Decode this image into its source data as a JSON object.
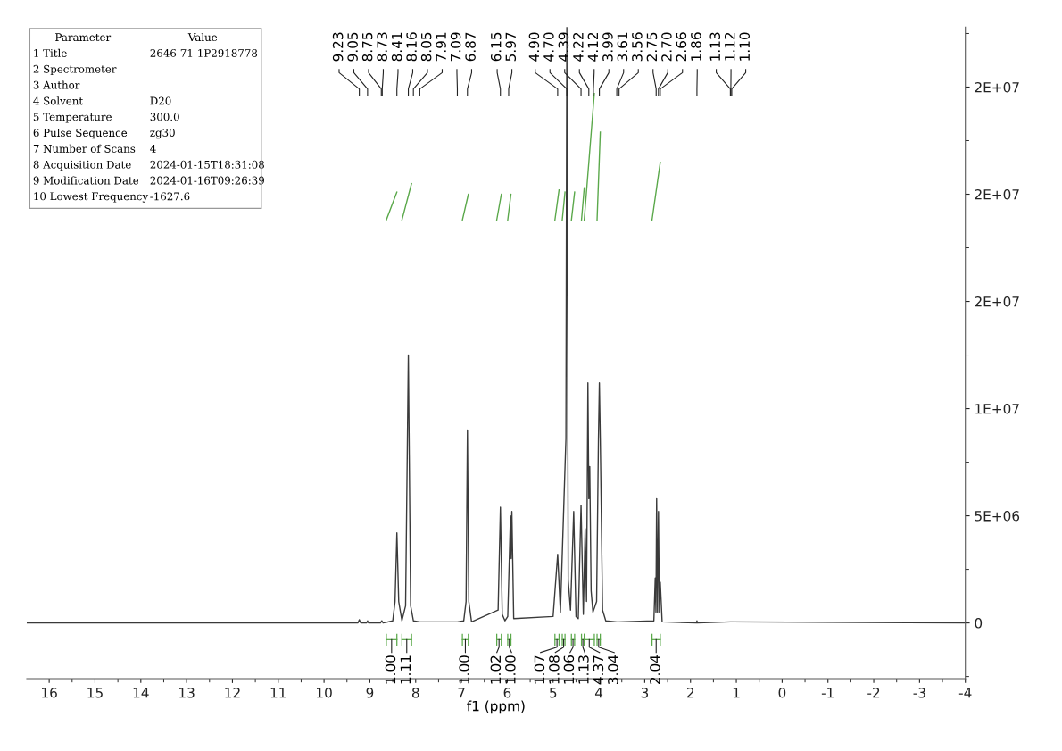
{
  "chart_data": {
    "type": "line",
    "xlabel": "f1 (ppm)",
    "xlim": [
      16.49,
      -4
    ],
    "xticks": [
      16,
      15,
      14,
      13,
      12,
      11,
      10,
      9,
      8,
      7,
      6,
      5,
      4,
      3,
      2,
      1,
      0,
      -1,
      -2,
      -3,
      -4
    ],
    "ylim": [
      -2600000,
      27800000
    ],
    "yticks": [
      0,
      {
        "value": 5000000,
        "label": "5E+06"
      },
      {
        "value": 10000000,
        "label": "1E+07"
      },
      {
        "value": 15000000,
        "label": "2E+07"
      },
      {
        "value": 20000000,
        "label": "2E+07"
      },
      {
        "value": 25000000,
        "label": "2E+07"
      }
    ],
    "grid": false,
    "legend": false,
    "marker": "none",
    "line_style": "solid",
    "series": [
      {
        "color": "#3a3a3a",
        "x": [
          16.49,
          9.26,
          9.23,
          9.2,
          9.07,
          9.05,
          9.03,
          8.77,
          8.74,
          8.71,
          8.5,
          8.45,
          8.41,
          8.37,
          8.3,
          8.22,
          8.16,
          8.11,
          8.05,
          7.91,
          7.09,
          6.95,
          6.9,
          6.87,
          6.84,
          6.78,
          6.2,
          6.15,
          6.11,
          6.05,
          5.99,
          5.93,
          5.915,
          5.9,
          5.86,
          5.0,
          4.9,
          4.84,
          4.76,
          4.72,
          4.7,
          4.67,
          4.62,
          4.55,
          4.5,
          4.45,
          4.39,
          4.34,
          4.3,
          4.27,
          4.24,
          4.22,
          4.2,
          4.17,
          4.13,
          4.05,
          4.01,
          3.99,
          3.97,
          3.92,
          3.85,
          3.61,
          3.56,
          2.8,
          2.77,
          2.755,
          2.74,
          2.72,
          2.7,
          2.68,
          2.66,
          2.62,
          1.87,
          1.86,
          1.85,
          1.13,
          1.12,
          1.1,
          -4
        ],
        "values": [
          0,
          0,
          150000,
          0,
          0,
          100000,
          0,
          0,
          100000,
          0,
          100000,
          1000000,
          4200000,
          1000000,
          100000,
          800000,
          12500000,
          800000,
          100000,
          50000,
          50000,
          100000,
          1000000,
          9000000,
          1000000,
          50000,
          600000,
          5400000,
          400000,
          100000,
          300000,
          5000000,
          3000000,
          5200000,
          200000,
          300000,
          3200000,
          500000,
          5900000,
          8600000,
          27800000,
          2000000,
          600000,
          5200000,
          300000,
          200000,
          5500000,
          400000,
          4400000,
          1000000,
          11200000,
          5800000,
          7300000,
          1500000,
          500000,
          1000000,
          8600000,
          11200000,
          8600000,
          600000,
          100000,
          50000,
          50000,
          100000,
          2100000,
          500000,
          5800000,
          500000,
          5200000,
          500000,
          1900000,
          50000,
          0,
          100000,
          0,
          50000,
          50000,
          50000,
          0
        ]
      },
      {
        "color": "#5aa84a",
        "x": [
          8.64,
          8.41,
          null,
          8.3,
          8.09,
          null,
          6.98,
          6.85,
          null,
          6.23,
          6.13,
          null,
          5.99,
          5.92,
          null,
          4.96,
          4.87,
          null,
          4.8,
          4.74,
          null,
          4.6,
          4.53,
          null,
          4.38,
          4.32,
          null,
          4.32,
          4.1,
          null,
          4.04,
          3.97,
          null,
          2.84,
          2.66
        ],
        "values": [
          18800000,
          20100000,
          null,
          18800000,
          20500000,
          null,
          18800000,
          20000000,
          null,
          18800000,
          20000000,
          null,
          18800000,
          20000000,
          null,
          18800000,
          20200000,
          null,
          18800000,
          20100000,
          null,
          18800000,
          20100000,
          null,
          18800000,
          20300000,
          null,
          18800000,
          24700000,
          null,
          18800000,
          22900000,
          null,
          18800000,
          21500000
        ]
      }
    ],
    "annotations": [
      "Parameter\tValue",
      "1 Title\t2646-71-1P2918778",
      "2 Spectrometer",
      "3 Author",
      "4 Solvent\tD20",
      "5 Temperature\t300.0",
      "6 Pulse Sequence\tzg30",
      "7 Number of Scans\t4",
      "8 Acquisition Date\t2024-01-15T18:31:08",
      "9 Modification Date\t2024-01-16T09:26:39",
      "10 Lowest Frequency\t-1627.6",
      {
        "text": "9.23",
        "x": 9.23
      },
      {
        "text": "9.05",
        "x": 9.05
      },
      {
        "text": "8.75",
        "x": 8.75
      },
      {
        "text": "8.73",
        "x": 8.73
      },
      {
        "text": "8.41",
        "x": 8.41
      },
      {
        "text": "8.16",
        "x": 8.16
      },
      {
        "text": "8.05",
        "x": 8.05
      },
      {
        "text": "7.91",
        "x": 7.91
      },
      {
        "text": "7.09",
        "x": 7.09
      },
      {
        "text": "6.87",
        "x": 6.87
      },
      {
        "text": "6.15",
        "x": 6.15
      },
      {
        "text": "5.97",
        "x": 5.97
      },
      {
        "text": "4.90",
        "x": 4.9
      },
      {
        "text": "4.70",
        "x": 4.7
      },
      {
        "text": "4.39",
        "x": 4.39
      },
      {
        "text": "4.22",
        "x": 4.22
      },
      {
        "text": "4.12",
        "x": 4.12
      },
      {
        "text": "3.99",
        "x": 3.99
      },
      {
        "text": "3.61",
        "x": 3.61
      },
      {
        "text": "3.56",
        "x": 3.56
      },
      {
        "text": "2.75",
        "x": 2.75
      },
      {
        "text": "2.70",
        "x": 2.7
      },
      {
        "text": "2.66",
        "x": 2.66
      },
      {
        "text": "1.86",
        "x": 1.86
      },
      {
        "text": "1.13",
        "x": 1.13
      },
      {
        "text": "1.12",
        "x": 1.12
      },
      {
        "text": "1.10",
        "x": 1.1
      },
      "1.00",
      "1.11",
      "1.00",
      "1.02",
      "1.00",
      "1.07",
      "1.08",
      "1.06",
      "1.13",
      "4.37",
      "3.04",
      "2.04"
    ]
  }
}
